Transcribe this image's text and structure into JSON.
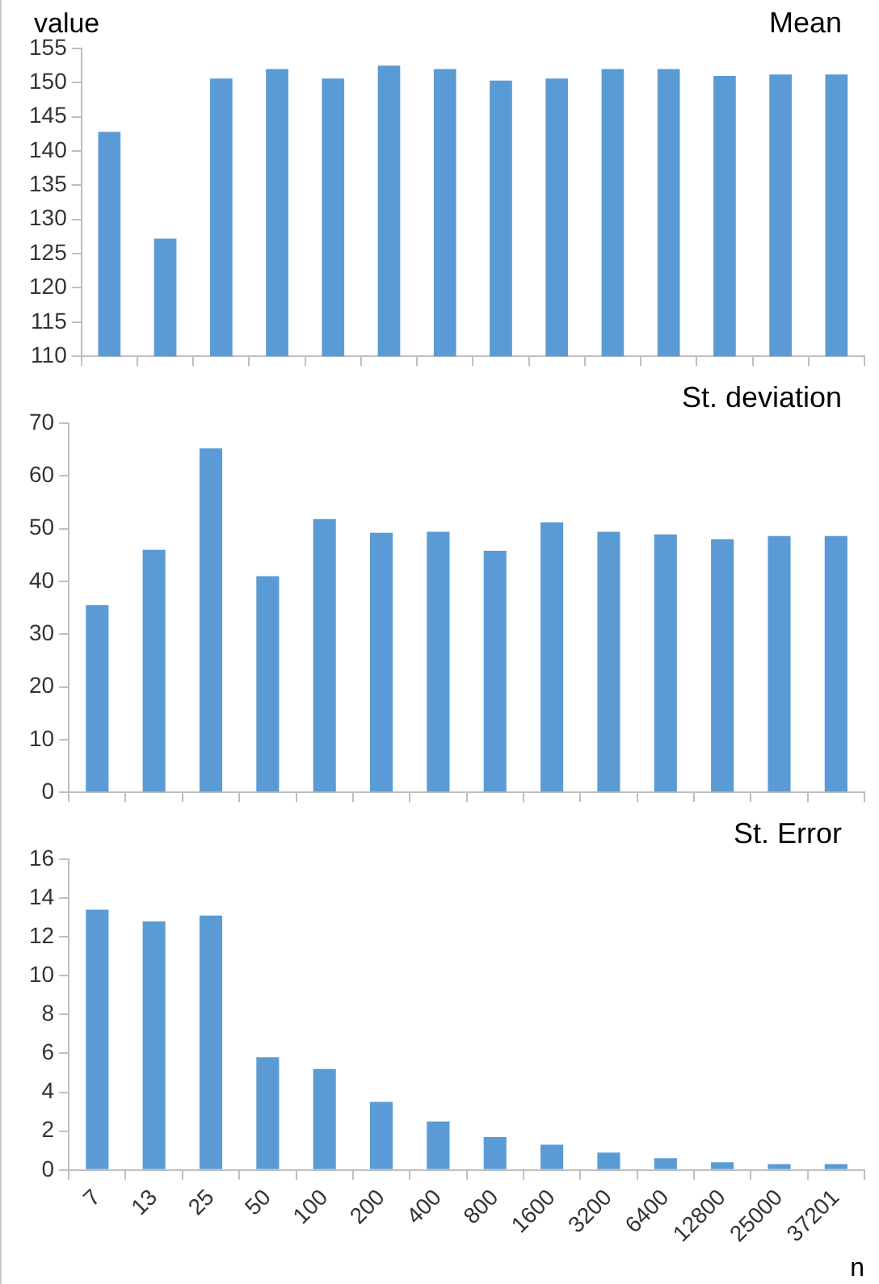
{
  "chart_data": [
    {
      "type": "bar",
      "title": "Mean",
      "ylabel": "value",
      "categories": [
        "7",
        "13",
        "25",
        "50",
        "100",
        "200",
        "400",
        "800",
        "1600",
        "3200",
        "6400",
        "12800",
        "25000",
        "37201"
      ],
      "values": [
        142.8,
        127.2,
        150.6,
        152,
        150.6,
        152.5,
        152,
        150.3,
        150.6,
        152,
        152,
        151,
        151.2,
        151.2
      ],
      "color": "#5b9bd5",
      "ylim": [
        110,
        155
      ],
      "yticks": [
        110,
        115,
        120,
        125,
        130,
        135,
        140,
        145,
        150,
        155
      ],
      "tick_labels": "y",
      "grid": false
    },
    {
      "type": "bar",
      "title": "St. deviation",
      "categories": [
        "7",
        "13",
        "25",
        "50",
        "100",
        "200",
        "400",
        "800",
        "1600",
        "3200",
        "6400",
        "12800",
        "25000",
        "37201"
      ],
      "values": [
        35.5,
        46,
        65.2,
        41,
        51.8,
        49.2,
        49.4,
        45.8,
        51.2,
        49.4,
        48.9,
        48,
        48.6,
        48.6
      ],
      "color": "#5b9bd5",
      "ylim": [
        0,
        70
      ],
      "yticks": [
        0,
        10,
        20,
        30,
        40,
        50,
        60,
        70
      ],
      "tick_labels": "y",
      "grid": false
    },
    {
      "type": "bar",
      "title": "St. Error",
      "xlabel": "n",
      "categories": [
        "7",
        "13",
        "25",
        "50",
        "100",
        "200",
        "400",
        "800",
        "1600",
        "3200",
        "6400",
        "12800",
        "25000",
        "37201"
      ],
      "values": [
        13.4,
        12.8,
        13.1,
        5.8,
        5.2,
        3.5,
        2.5,
        1.7,
        1.3,
        0.9,
        0.6,
        0.4,
        0.3,
        0.3
      ],
      "color": "#5b9bd5",
      "ylim": [
        0,
        16
      ],
      "yticks": [
        0,
        2,
        4,
        6,
        8,
        10,
        12,
        14,
        16
      ],
      "grid": false
    }
  ]
}
